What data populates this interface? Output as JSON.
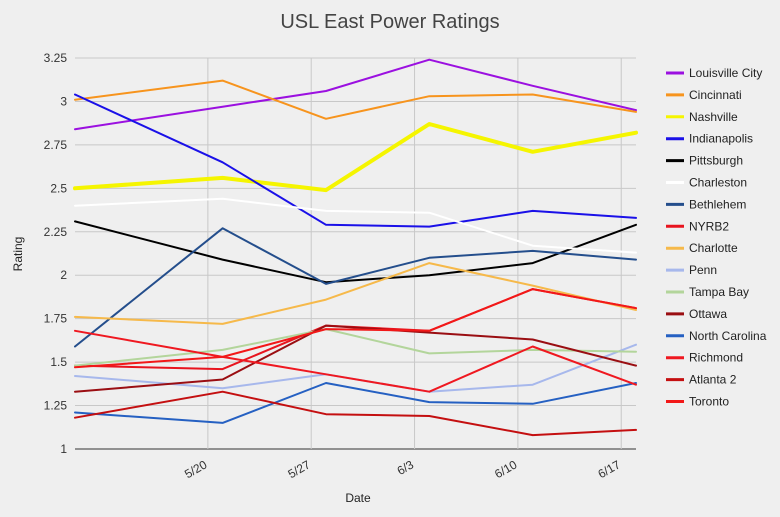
{
  "chart_data": {
    "type": "line",
    "title": "USL East Power Ratings",
    "xlabel": "Date",
    "ylabel": "Rating",
    "ylim": [
      1,
      3.25
    ],
    "yticks": [
      "1",
      "1.25",
      "1.5",
      "1.75",
      "2",
      "2.25",
      "2.5",
      "2.75",
      "3",
      "3.25"
    ],
    "xlim": [
      "5/11",
      "6/18"
    ],
    "xticks": [
      "5/20",
      "5/27",
      "6/3",
      "6/10",
      "6/17"
    ],
    "x": [
      "5/11",
      "5/21",
      "5/28",
      "6/4",
      "6/11",
      "6/18"
    ],
    "grid": true,
    "legend_position": "right",
    "series": [
      {
        "name": "Louisville City",
        "color": "#9b10e0",
        "width": 2,
        "values": [
          2.84,
          2.97,
          3.06,
          3.24,
          3.09,
          2.95
        ]
      },
      {
        "name": "Cincinnati",
        "color": "#f7941d",
        "width": 2,
        "values": [
          3.01,
          3.12,
          2.9,
          3.03,
          3.04,
          2.94
        ]
      },
      {
        "name": "Nashville",
        "color": "#f5f500",
        "width": 4,
        "values": [
          2.5,
          2.56,
          2.49,
          2.87,
          2.71,
          2.82
        ]
      },
      {
        "name": "Indianapolis",
        "color": "#1a10e8",
        "width": 2,
        "values": [
          3.04,
          2.65,
          2.29,
          2.28,
          2.37,
          2.33
        ]
      },
      {
        "name": "Pittsburgh",
        "color": "#000000",
        "width": 2,
        "values": [
          2.31,
          2.09,
          1.96,
          2.0,
          2.07,
          2.29
        ]
      },
      {
        "name": "Charleston",
        "color": "#ffffff",
        "width": 2,
        "values": [
          2.4,
          2.44,
          2.37,
          2.36,
          2.17,
          2.13
        ]
      },
      {
        "name": "Bethlehem",
        "color": "#244e8c",
        "width": 2,
        "values": [
          1.59,
          2.27,
          1.95,
          2.1,
          2.14,
          2.09
        ]
      },
      {
        "name": "NYRB2",
        "color": "#e8141e",
        "width": 2,
        "values": [
          1.48,
          1.46,
          1.71,
          1.68,
          1.92,
          1.81
        ]
      },
      {
        "name": "Charlotte",
        "color": "#f6b94a",
        "width": 2,
        "values": [
          1.76,
          1.72,
          1.86,
          2.07,
          1.94,
          1.8
        ]
      },
      {
        "name": "Penn",
        "color": "#a7b8ec",
        "width": 2,
        "values": [
          1.42,
          1.35,
          1.43,
          1.33,
          1.37,
          1.6
        ]
      },
      {
        "name": "Tampa Bay",
        "color": "#b3d59b",
        "width": 2,
        "values": [
          1.48,
          1.57,
          1.69,
          1.55,
          1.57,
          1.56
        ]
      },
      {
        "name": "Ottawa",
        "color": "#9a0e12",
        "width": 2,
        "values": [
          1.33,
          1.4,
          1.71,
          1.67,
          1.63,
          1.48
        ]
      },
      {
        "name": "North Carolina",
        "color": "#2560c2",
        "width": 2,
        "values": [
          1.21,
          1.15,
          1.38,
          1.27,
          1.26,
          1.38
        ]
      },
      {
        "name": "Richmond",
        "color": "#ef1820",
        "width": 2,
        "values": [
          1.68,
          1.53,
          1.43,
          1.33,
          1.59,
          1.37
        ]
      },
      {
        "name": "Atlanta 2",
        "color": "#c40f10",
        "width": 2,
        "values": [
          1.18,
          1.33,
          1.2,
          1.19,
          1.08,
          1.11
        ]
      },
      {
        "name": "Toronto",
        "color": "#f21818",
        "width": 2,
        "values": [
          1.47,
          1.53,
          1.69,
          1.68,
          1.92,
          1.81
        ]
      }
    ]
  }
}
